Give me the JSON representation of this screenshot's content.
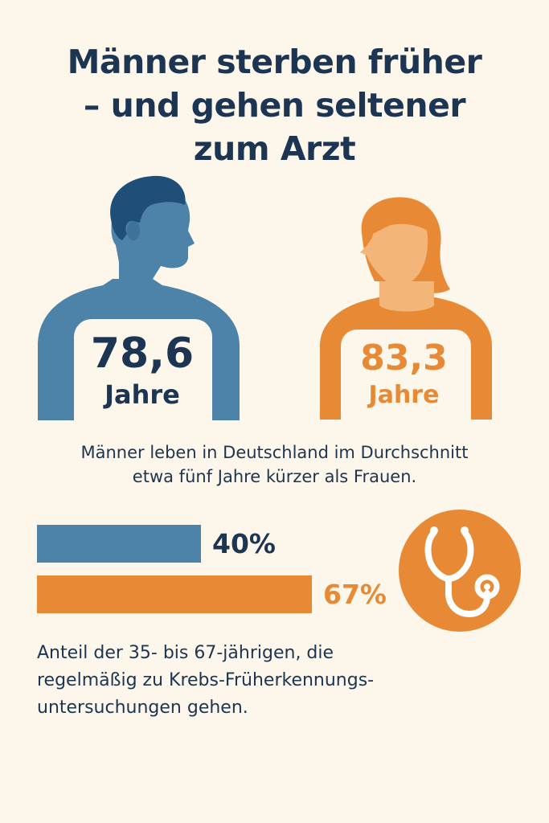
{
  "title": {
    "lines": [
      "Männer sterben früher",
      "– und gehen seltener",
      "zum Arzt"
    ]
  },
  "men": {
    "age": "78,6",
    "unit": "Jahre",
    "color": "#4d83a9",
    "hair_color": "#1f4f78"
  },
  "women": {
    "age": "83,3",
    "unit": "Jahre",
    "color": "#e88a35",
    "skin_color": "#f3b678"
  },
  "lifespan_text": {
    "lines": [
      "Männer leben in Deutschland im Durchschnitt",
      "etwa fünf Jahre kürzer als Frauen."
    ]
  },
  "screening": {
    "men_label": "40%",
    "men_value": 40,
    "women_label": "67%",
    "women_value": 67,
    "icon": "stethoscope-icon"
  },
  "caption": {
    "lines": [
      "Anteil der 35- bis 67-jährigen, die",
      "regelmäßig zu Krebs-Früherkennungs-",
      "untersuchungen gehen."
    ]
  }
}
